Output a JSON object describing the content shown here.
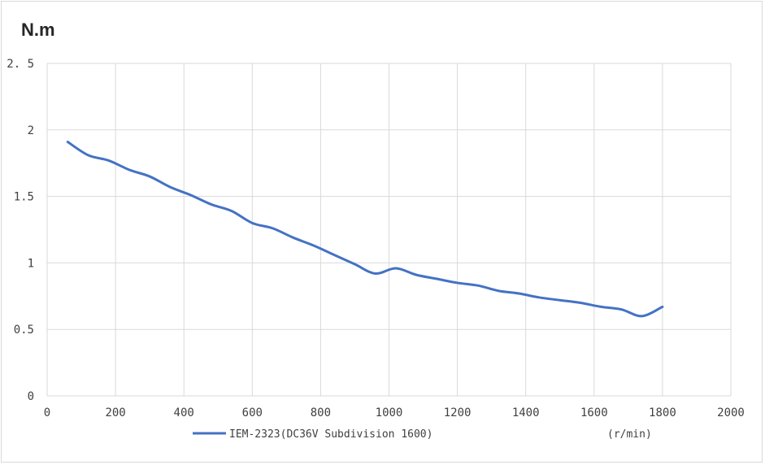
{
  "chart_data": {
    "type": "line",
    "y_unit_label": "N.m",
    "x_unit_label": "(r/min)",
    "xlim": [
      0,
      2000
    ],
    "ylim": [
      0,
      2.5
    ],
    "x_ticks": [
      "0",
      "200",
      "400",
      "600",
      "800",
      "1000",
      "1200",
      "1400",
      "1600",
      "1800",
      "2000"
    ],
    "y_ticks": [
      "0",
      "0.5",
      "1",
      "1.5",
      "2",
      "2. 5"
    ],
    "grid": true,
    "legend_position": "bottom",
    "series": [
      {
        "name": "IEM-2323(DC36V Subdivision 1600)",
        "color": "#4472c4",
        "x": [
          60,
          120,
          180,
          240,
          300,
          360,
          420,
          480,
          540,
          600,
          660,
          720,
          780,
          840,
          900,
          960,
          1020,
          1080,
          1140,
          1200,
          1260,
          1320,
          1380,
          1440,
          1500,
          1560,
          1620,
          1680,
          1740,
          1800
        ],
        "y": [
          1.91,
          1.81,
          1.77,
          1.7,
          1.65,
          1.57,
          1.51,
          1.44,
          1.39,
          1.3,
          1.26,
          1.19,
          1.13,
          1.06,
          0.99,
          0.92,
          0.96,
          0.91,
          0.88,
          0.85,
          0.83,
          0.79,
          0.77,
          0.74,
          0.72,
          0.7,
          0.67,
          0.65,
          0.6,
          0.67
        ]
      }
    ]
  }
}
